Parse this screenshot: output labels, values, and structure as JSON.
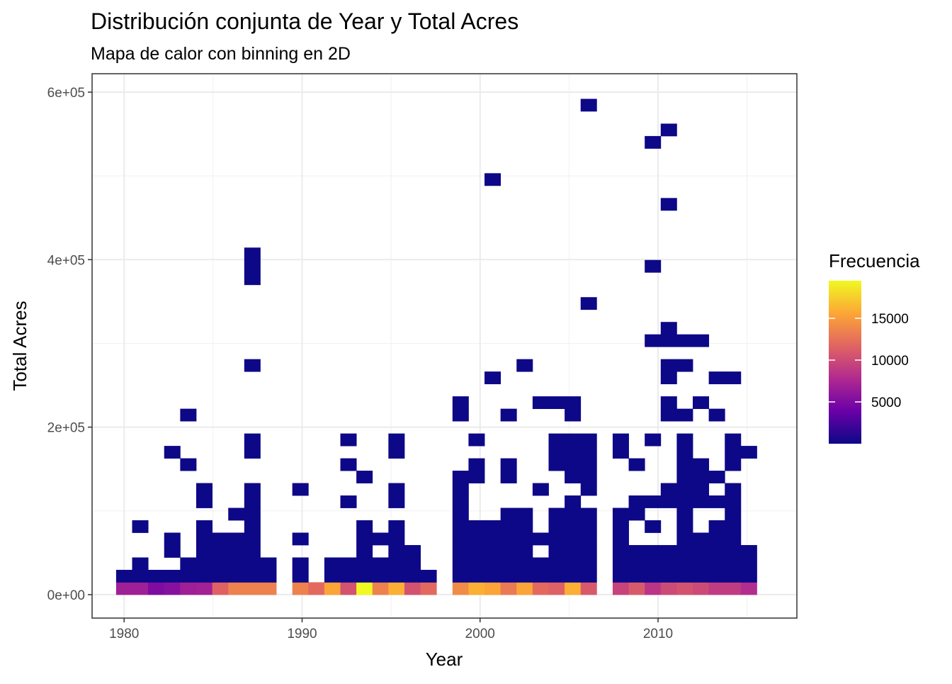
{
  "chart_data": {
    "type": "heatmap",
    "title": "Distribución conjunta de Year y Total Acres",
    "subtitle": "Mapa de calor con binning en 2D",
    "xlabel": "Year",
    "ylabel": "Total Acres",
    "xlim": [
      1978.2,
      2017.8
    ],
    "ylim": [
      -28000,
      622000
    ],
    "x_ticks": [
      1980,
      1990,
      2000,
      2010
    ],
    "x_tick_labels": [
      "1980",
      "1990",
      "2000",
      "2010"
    ],
    "y_ticks": [
      0,
      200000,
      400000,
      600000
    ],
    "y_tick_labels": [
      "0e+00",
      "2e+05",
      "4e+05",
      "6e+05"
    ],
    "grid": true,
    "legend": {
      "title": "Frecuencia",
      "position": "right",
      "min": 1,
      "max": 19500,
      "breaks": [
        5000,
        10000,
        15000
      ],
      "break_labels": [
        "5000",
        "10000",
        "15000"
      ],
      "colors": [
        "#0d0887",
        "#6a00a8",
        "#b12a90",
        "#e16462",
        "#fca636",
        "#f0f921"
      ]
    },
    "bins": {
      "x_start": 1979.55,
      "x_width": 0.9,
      "y_start": 0,
      "y_width": 14800,
      "cells": [
        [
          0,
          0,
          6800
        ],
        [
          1,
          0,
          6800
        ],
        [
          2,
          0,
          5000
        ],
        [
          3,
          0,
          5500
        ],
        [
          4,
          0,
          6800
        ],
        [
          5,
          0,
          7000
        ],
        [
          6,
          0,
          11500
        ],
        [
          7,
          0,
          13500
        ],
        [
          8,
          0,
          13500
        ],
        [
          9,
          0,
          13500
        ],
        [
          11,
          0,
          13500
        ],
        [
          12,
          0,
          12000
        ],
        [
          13,
          0,
          15500
        ],
        [
          14,
          0,
          10500
        ],
        [
          15,
          0,
          19500
        ],
        [
          16,
          0,
          13500
        ],
        [
          17,
          0,
          16000
        ],
        [
          18,
          0,
          10500
        ],
        [
          19,
          0,
          12000
        ],
        [
          21,
          0,
          14000
        ],
        [
          22,
          0,
          16000
        ],
        [
          23,
          0,
          15500
        ],
        [
          24,
          0,
          13000
        ],
        [
          25,
          0,
          15500
        ],
        [
          26,
          0,
          12000
        ],
        [
          27,
          0,
          11500
        ],
        [
          28,
          0,
          16000
        ],
        [
          29,
          0,
          11000
        ],
        [
          31,
          0,
          9500
        ],
        [
          32,
          0,
          11000
        ],
        [
          33,
          0,
          8500
        ],
        [
          34,
          0,
          10000
        ],
        [
          35,
          0,
          10500
        ],
        [
          36,
          0,
          10000
        ],
        [
          37,
          0,
          9000
        ],
        [
          38,
          0,
          9000
        ],
        [
          39,
          0,
          8000
        ],
        [
          0,
          1,
          1
        ],
        [
          1,
          1,
          1
        ],
        [
          2,
          1,
          1
        ],
        [
          3,
          1,
          1
        ],
        [
          4,
          1,
          1
        ],
        [
          5,
          1,
          1
        ],
        [
          6,
          1,
          1
        ],
        [
          7,
          1,
          1
        ],
        [
          8,
          1,
          1
        ],
        [
          9,
          1,
          1
        ],
        [
          11,
          1,
          1
        ],
        [
          13,
          1,
          1
        ],
        [
          14,
          1,
          1
        ],
        [
          15,
          1,
          1
        ],
        [
          16,
          1,
          1
        ],
        [
          17,
          1,
          1
        ],
        [
          18,
          1,
          1
        ],
        [
          19,
          1,
          1
        ],
        [
          21,
          1,
          1
        ],
        [
          22,
          1,
          1
        ],
        [
          23,
          1,
          1
        ],
        [
          24,
          1,
          1
        ],
        [
          25,
          1,
          1
        ],
        [
          26,
          1,
          1
        ],
        [
          27,
          1,
          1
        ],
        [
          28,
          1,
          1
        ],
        [
          29,
          1,
          1
        ],
        [
          31,
          1,
          1
        ],
        [
          32,
          1,
          1
        ],
        [
          33,
          1,
          1
        ],
        [
          34,
          1,
          1
        ],
        [
          35,
          1,
          1
        ],
        [
          36,
          1,
          1
        ],
        [
          37,
          1,
          1
        ],
        [
          38,
          1,
          1
        ],
        [
          39,
          1,
          1
        ],
        [
          1,
          2,
          1
        ],
        [
          4,
          2,
          1
        ],
        [
          5,
          2,
          1
        ],
        [
          6,
          2,
          1
        ],
        [
          7,
          2,
          1
        ],
        [
          8,
          2,
          1
        ],
        [
          9,
          2,
          1
        ],
        [
          11,
          2,
          1
        ],
        [
          13,
          2,
          1
        ],
        [
          14,
          2,
          1
        ],
        [
          15,
          2,
          1
        ],
        [
          16,
          2,
          1
        ],
        [
          17,
          2,
          1
        ],
        [
          18,
          2,
          1
        ],
        [
          21,
          2,
          1
        ],
        [
          22,
          2,
          1
        ],
        [
          23,
          2,
          1
        ],
        [
          24,
          2,
          1
        ],
        [
          25,
          2,
          1
        ],
        [
          26,
          2,
          1
        ],
        [
          27,
          2,
          1
        ],
        [
          28,
          2,
          1
        ],
        [
          29,
          2,
          1
        ],
        [
          31,
          2,
          1
        ],
        [
          32,
          2,
          1
        ],
        [
          33,
          2,
          1
        ],
        [
          34,
          2,
          1
        ],
        [
          35,
          2,
          1
        ],
        [
          36,
          2,
          1
        ],
        [
          37,
          2,
          1
        ],
        [
          38,
          2,
          1
        ],
        [
          39,
          2,
          1
        ],
        [
          3,
          3,
          1
        ],
        [
          5,
          3,
          1
        ],
        [
          6,
          3,
          1
        ],
        [
          7,
          3,
          1
        ],
        [
          8,
          3,
          1
        ],
        [
          15,
          3,
          1
        ],
        [
          17,
          3,
          1
        ],
        [
          18,
          3,
          1
        ],
        [
          21,
          3,
          1
        ],
        [
          22,
          3,
          1
        ],
        [
          23,
          3,
          1
        ],
        [
          24,
          3,
          1
        ],
        [
          25,
          3,
          1
        ],
        [
          27,
          3,
          1
        ],
        [
          28,
          3,
          1
        ],
        [
          29,
          3,
          1
        ],
        [
          31,
          3,
          1
        ],
        [
          32,
          3,
          1
        ],
        [
          33,
          3,
          1
        ],
        [
          34,
          3,
          1
        ],
        [
          35,
          3,
          1
        ],
        [
          36,
          3,
          1
        ],
        [
          37,
          3,
          1
        ],
        [
          38,
          3,
          1
        ],
        [
          39,
          3,
          1
        ],
        [
          3,
          4,
          1
        ],
        [
          5,
          4,
          1
        ],
        [
          6,
          4,
          1
        ],
        [
          7,
          4,
          1
        ],
        [
          8,
          4,
          1
        ],
        [
          11,
          4,
          1
        ],
        [
          15,
          4,
          1
        ],
        [
          16,
          4,
          1
        ],
        [
          17,
          4,
          1
        ],
        [
          21,
          4,
          1
        ],
        [
          22,
          4,
          1
        ],
        [
          23,
          4,
          1
        ],
        [
          24,
          4,
          1
        ],
        [
          25,
          4,
          1
        ],
        [
          26,
          4,
          1
        ],
        [
          27,
          4,
          1
        ],
        [
          28,
          4,
          1
        ],
        [
          29,
          4,
          1
        ],
        [
          31,
          4,
          1
        ],
        [
          35,
          4,
          1
        ],
        [
          36,
          4,
          1
        ],
        [
          37,
          4,
          1
        ],
        [
          38,
          4,
          1
        ],
        [
          1,
          5,
          1
        ],
        [
          5,
          5,
          1
        ],
        [
          8,
          5,
          1
        ],
        [
          15,
          5,
          1
        ],
        [
          17,
          5,
          1
        ],
        [
          21,
          5,
          1
        ],
        [
          22,
          5,
          1
        ],
        [
          23,
          5,
          1
        ],
        [
          24,
          5,
          1
        ],
        [
          25,
          5,
          1
        ],
        [
          27,
          5,
          1
        ],
        [
          28,
          5,
          1
        ],
        [
          29,
          5,
          1
        ],
        [
          31,
          5,
          1
        ],
        [
          33,
          5,
          1
        ],
        [
          35,
          5,
          1
        ],
        [
          37,
          5,
          1
        ],
        [
          38,
          5,
          1
        ],
        [
          7,
          6,
          1
        ],
        [
          8,
          6,
          1
        ],
        [
          21,
          6,
          1
        ],
        [
          24,
          6,
          1
        ],
        [
          25,
          6,
          1
        ],
        [
          27,
          6,
          1
        ],
        [
          28,
          6,
          1
        ],
        [
          29,
          6,
          1
        ],
        [
          31,
          6,
          1
        ],
        [
          32,
          6,
          1
        ],
        [
          35,
          6,
          1
        ],
        [
          38,
          6,
          1
        ],
        [
          5,
          7,
          1
        ],
        [
          8,
          7,
          1
        ],
        [
          14,
          7,
          1
        ],
        [
          17,
          7,
          1
        ],
        [
          21,
          7,
          1
        ],
        [
          28,
          7,
          1
        ],
        [
          32,
          7,
          1
        ],
        [
          33,
          7,
          1
        ],
        [
          34,
          7,
          1
        ],
        [
          35,
          7,
          1
        ],
        [
          36,
          7,
          1
        ],
        [
          37,
          7,
          1
        ],
        [
          38,
          7,
          1
        ],
        [
          5,
          8,
          1
        ],
        [
          8,
          8,
          1
        ],
        [
          11,
          8,
          1
        ],
        [
          17,
          8,
          1
        ],
        [
          21,
          8,
          1
        ],
        [
          26,
          8,
          1
        ],
        [
          29,
          8,
          1
        ],
        [
          34,
          8,
          1
        ],
        [
          35,
          8,
          1
        ],
        [
          36,
          8,
          1
        ],
        [
          38,
          8,
          1
        ],
        [
          15,
          9,
          1
        ],
        [
          21,
          9,
          1
        ],
        [
          22,
          9,
          1
        ],
        [
          24,
          9,
          1
        ],
        [
          28,
          9,
          1
        ],
        [
          29,
          9,
          1
        ],
        [
          35,
          9,
          1
        ],
        [
          36,
          9,
          1
        ],
        [
          37,
          9,
          1
        ],
        [
          4,
          10,
          1
        ],
        [
          14,
          10,
          1
        ],
        [
          22,
          10,
          1
        ],
        [
          24,
          10,
          1
        ],
        [
          27,
          10,
          1
        ],
        [
          28,
          10,
          1
        ],
        [
          29,
          10,
          1
        ],
        [
          32,
          10,
          1
        ],
        [
          35,
          10,
          1
        ],
        [
          36,
          10,
          1
        ],
        [
          38,
          10,
          1
        ],
        [
          3,
          11,
          1
        ],
        [
          8,
          11,
          1
        ],
        [
          17,
          11,
          1
        ],
        [
          27,
          11,
          1
        ],
        [
          28,
          11,
          1
        ],
        [
          29,
          11,
          1
        ],
        [
          31,
          11,
          1
        ],
        [
          35,
          11,
          1
        ],
        [
          38,
          11,
          1
        ],
        [
          39,
          11,
          1
        ],
        [
          8,
          12,
          1
        ],
        [
          14,
          12,
          1
        ],
        [
          17,
          12,
          1
        ],
        [
          22,
          12,
          1
        ],
        [
          27,
          12,
          1
        ],
        [
          28,
          12,
          1
        ],
        [
          29,
          12,
          1
        ],
        [
          31,
          12,
          1
        ],
        [
          33,
          12,
          1
        ],
        [
          35,
          12,
          1
        ],
        [
          38,
          12,
          1
        ],
        [
          4,
          14,
          1
        ],
        [
          21,
          14,
          1
        ],
        [
          24,
          14,
          1
        ],
        [
          28,
          14,
          1
        ],
        [
          34,
          14,
          1
        ],
        [
          35,
          14,
          1
        ],
        [
          37,
          14,
          1
        ],
        [
          21,
          15,
          1
        ],
        [
          26,
          15,
          1
        ],
        [
          27,
          15,
          1
        ],
        [
          28,
          15,
          1
        ],
        [
          34,
          15,
          1
        ],
        [
          36,
          15,
          1
        ],
        [
          23,
          17,
          1
        ],
        [
          34,
          17,
          1
        ],
        [
          25,
          18,
          1
        ],
        [
          35,
          18,
          1
        ],
        [
          8,
          18,
          1
        ],
        [
          34,
          18,
          1
        ],
        [
          33,
          20,
          1
        ],
        [
          34,
          21,
          1
        ],
        [
          37,
          17,
          1
        ],
        [
          38,
          17,
          1
        ],
        [
          34,
          20,
          1
        ],
        [
          8,
          25,
          1
        ],
        [
          8,
          26,
          1
        ],
        [
          8,
          27,
          1
        ],
        [
          29,
          23,
          1
        ],
        [
          35,
          20,
          1
        ],
        [
          36,
          20,
          1
        ],
        [
          33,
          26,
          1
        ],
        [
          23,
          33,
          1
        ],
        [
          34,
          31,
          1
        ],
        [
          33,
          36,
          1
        ],
        [
          34,
          37,
          1
        ],
        [
          29,
          39,
          1
        ]
      ]
    }
  }
}
